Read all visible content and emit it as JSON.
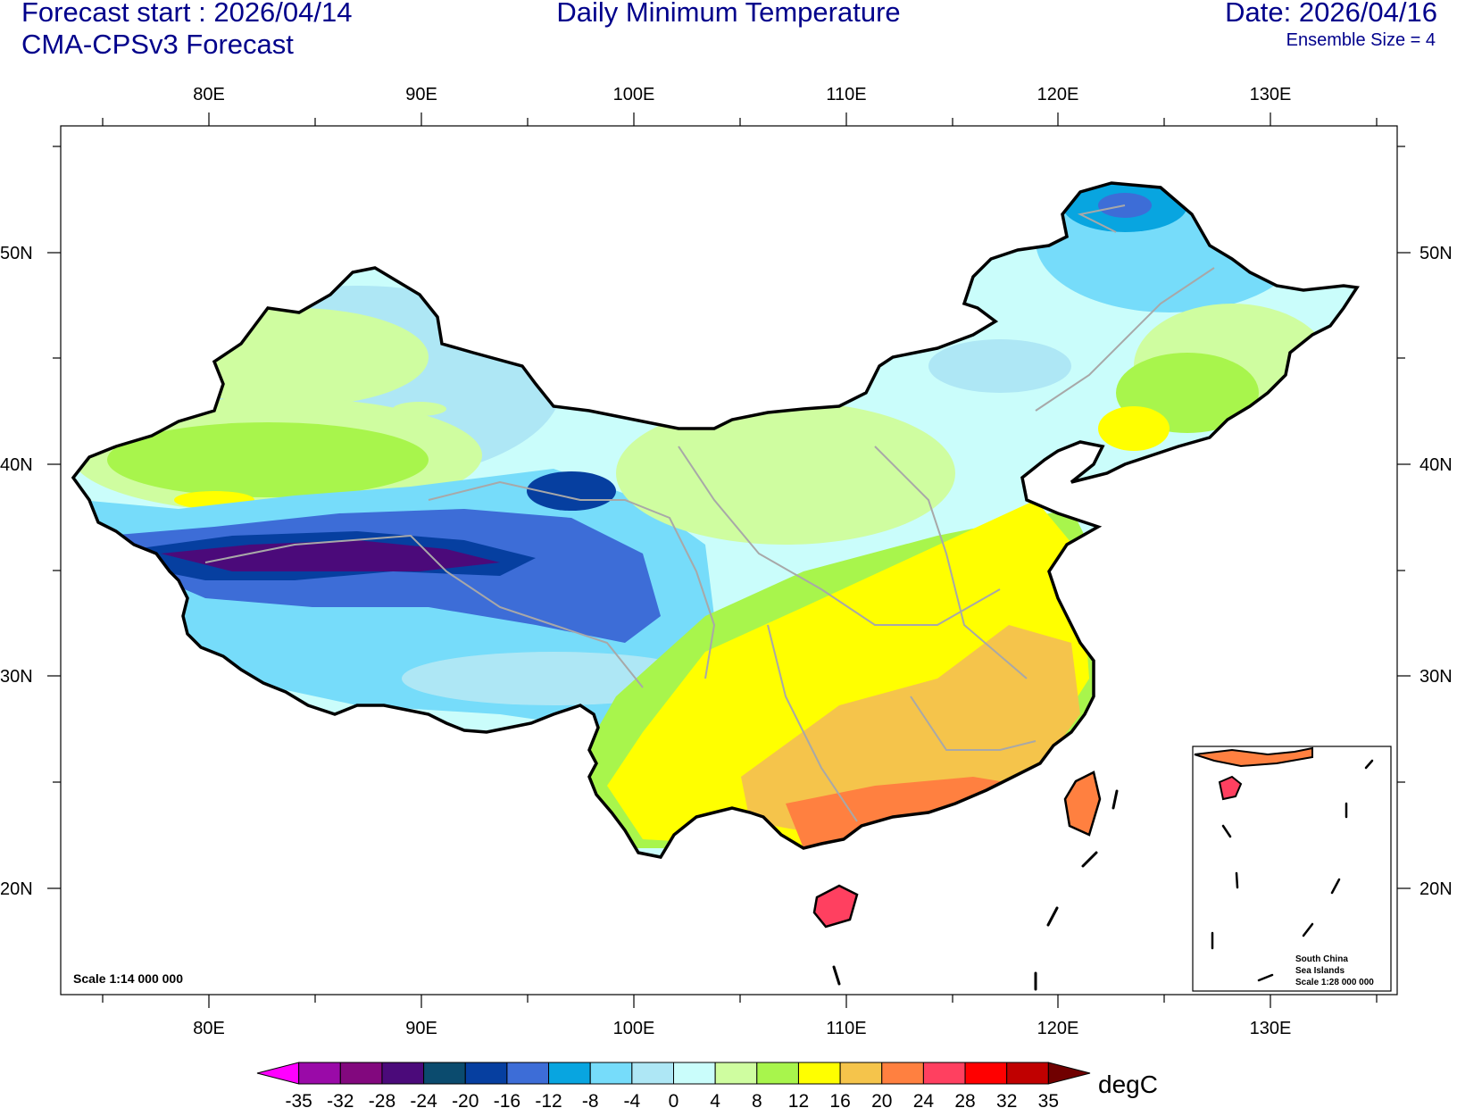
{
  "header": {
    "forecast_start": "Forecast start : 2026/04/14",
    "model": "CMA-CPSv3 Forecast",
    "title": "Daily Minimum Temperature",
    "date": "Date: 2026/04/16",
    "ensemble": "Ensemble Size = 4"
  },
  "map": {
    "lon_ticks": [
      "80E",
      "90E",
      "100E",
      "110E",
      "120E",
      "130E"
    ],
    "lat_ticks": [
      "50N",
      "40N",
      "30N",
      "20N"
    ],
    "scale_label": "Scale 1:14 000 000",
    "inset": {
      "line1": "South China",
      "line2": "Sea Islands",
      "line3": "Scale 1:28 000 000"
    }
  },
  "colorbar": {
    "unit": "degC",
    "labels": [
      "-35",
      "-32",
      "-28",
      "-24",
      "-20",
      "-16",
      "-12",
      "-8",
      "-4",
      "0",
      "4",
      "8",
      "12",
      "16",
      "20",
      "24",
      "28",
      "32",
      "35"
    ],
    "colors": [
      "#ff00ff",
      "#9a0aa8",
      "#82087e",
      "#4b0a7a",
      "#0b4b6e",
      "#063fa0",
      "#3d6dd7",
      "#08a5e0",
      "#76dcfa",
      "#aee7f5",
      "#cafdfb",
      "#cffda0",
      "#a8f54c",
      "#ffff00",
      "#f5c44b",
      "#ff8040",
      "#ff4060",
      "#ff0000",
      "#c00000",
      "#700000"
    ]
  }
}
